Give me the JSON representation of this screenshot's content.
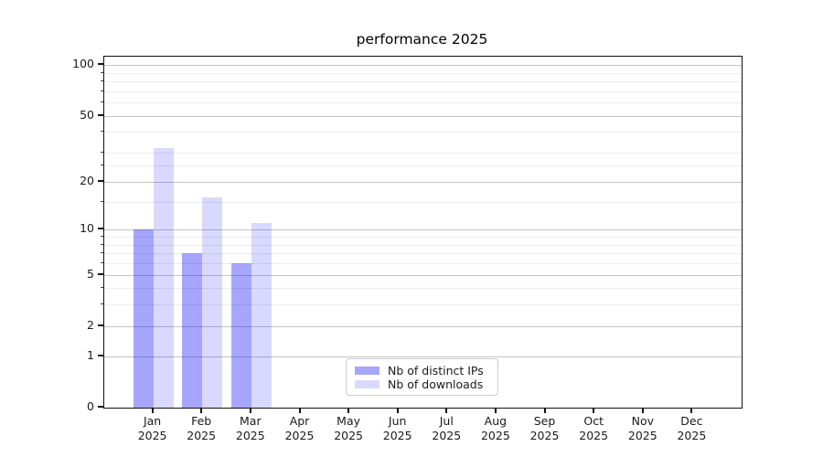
{
  "title": "performance 2025",
  "chart_data": {
    "type": "bar",
    "title": "performance 2025",
    "categories": [
      "Jan 2025",
      "Feb 2025",
      "Mar 2025",
      "Apr 2025",
      "May 2025",
      "Jun 2025",
      "Jul 2025",
      "Aug 2025",
      "Sep 2025",
      "Oct 2025",
      "Nov 2025",
      "Dec 2025"
    ],
    "x_tick_month": [
      "Jan",
      "Feb",
      "Mar",
      "Apr",
      "May",
      "Jun",
      "Jul",
      "Aug",
      "Sep",
      "Oct",
      "Nov",
      "Dec"
    ],
    "x_tick_year": "2025",
    "series": [
      {
        "name": "Nb of distinct IPs",
        "color": "#a6a6f3",
        "rgba": "rgba(0,0,255,0.35)",
        "values": [
          10,
          7,
          6,
          0,
          0,
          0,
          0,
          0,
          0,
          0,
          0,
          0
        ]
      },
      {
        "name": "Nb of downloads",
        "color": "#d9d9fa",
        "rgba": "rgba(0,0,255,0.15)",
        "values": [
          32,
          16,
          11,
          0,
          0,
          0,
          0,
          0,
          0,
          0,
          0,
          0
        ]
      }
    ],
    "xlabel": "",
    "ylabel": "",
    "yscale": "log1p",
    "ylim": [
      0,
      112
    ],
    "y_ticks": [
      0,
      1,
      2,
      5,
      10,
      20,
      50,
      100
    ],
    "y_minor_ticks": [
      3,
      4,
      6,
      7,
      8,
      9,
      15,
      25,
      30,
      40,
      60,
      70,
      80,
      90
    ],
    "grid": "horizontal major+minor",
    "legend": {
      "position": "inside bottom-center",
      "entries": [
        "Nb of distinct IPs",
        "Nb of downloads"
      ]
    },
    "colors": {
      "grid_major": "#c3c3c3",
      "grid_minor": "#ececec",
      "axis": "#111111",
      "text": "#1a1a1a"
    }
  }
}
